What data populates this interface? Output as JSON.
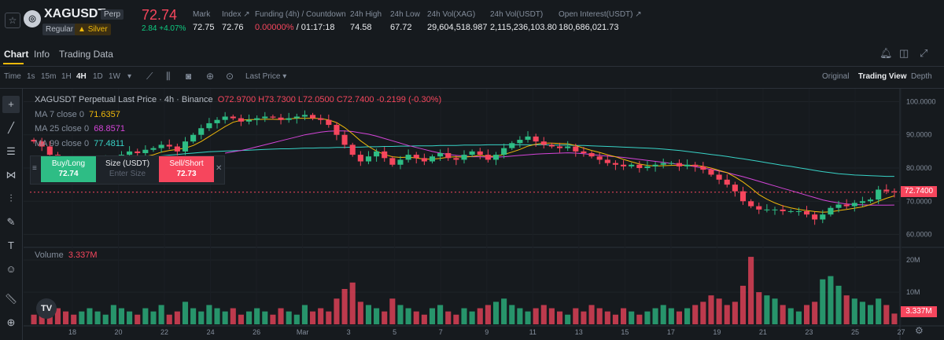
{
  "header": {
    "symbol": "XAGUSDT",
    "perp_badge": "Perp",
    "regular_badge": "Regular",
    "silver_badge": "Silver",
    "last_price": "72.74",
    "change": "2.84 +4.07%",
    "stats": [
      {
        "label": "Mark",
        "value": "72.75"
      },
      {
        "label": "Index",
        "value": "72.76"
      },
      {
        "label": "Funding (4h) / Countdown",
        "value": "0.00000%",
        "value2": " / 01:17:18"
      },
      {
        "label": "24h High",
        "value": "74.58"
      },
      {
        "label": "24h Low",
        "value": "67.72"
      },
      {
        "label": "24h Vol(XAG)",
        "value": "29,604,518.987"
      },
      {
        "label": "24h Vol(USDT)",
        "value": "2,115,236,103.80"
      },
      {
        "label": "Open Interest(USDT)",
        "value": "180,686,021.73"
      }
    ]
  },
  "tabs": [
    "Chart",
    "Info",
    "Trading Data"
  ],
  "toolbar": {
    "time_label": "Time",
    "intervals": [
      "1s",
      "15m",
      "1H",
      "4H",
      "1D",
      "1W"
    ],
    "active_interval": "4H",
    "price_type": "Last Price",
    "views": [
      "Original",
      "Trading View",
      "Depth"
    ],
    "active_view": "Trading View"
  },
  "legend": {
    "title": "XAGUSDT Perpetual Last Price · 4h · Binance",
    "ohlc": "O72.9700 H73.7300 L72.0500 C72.7400 -0.2199 (-0.30%)",
    "ma7": {
      "label": "MA 7 close 0",
      "value": "71.6357"
    },
    "ma25": {
      "label": "MA 25 close 0",
      "value": "68.8571"
    },
    "ma99": {
      "label": "MA 99 close 0",
      "value": "77.4811"
    },
    "volume_label": "Volume",
    "volume_value": "3.337M"
  },
  "order_widget": {
    "buy_label": "Buy/Long",
    "buy_price": "72.74",
    "size_label": "Size (USDT)",
    "size_placeholder": "Enter Size",
    "sell_label": "Sell/Short",
    "sell_price": "72.73"
  },
  "price_axis": [
    "100.0000",
    "90.0000",
    "80.0000",
    "70.0000",
    "60.0000"
  ],
  "volume_axis": [
    "20M",
    "10M"
  ],
  "current_price_tag": "72.7400",
  "current_volume_tag": "3.337M",
  "time_axis": [
    "18",
    "20",
    "22",
    "24",
    "26",
    "Mar",
    "3",
    "5",
    "7",
    "9",
    "11",
    "13",
    "15",
    "17",
    "19",
    "21",
    "23",
    "25",
    "27"
  ],
  "colors": {
    "up": "#2ebd85",
    "down": "#f6465d",
    "ma7": "#f0b90b",
    "ma25": "#d445d8",
    "ma99": "#38d3c7",
    "accent": "#f0b90b"
  },
  "chart_data": {
    "type": "candlestick",
    "interval": "4h",
    "price_ylim": [
      58,
      102
    ],
    "close_path": [
      88.0,
      86.5,
      84.0,
      81.5,
      80.0,
      79.5,
      80.5,
      81.0,
      82.0,
      82.5,
      83.0,
      84.0,
      85.0,
      84.5,
      85.5,
      86.0,
      87.0,
      86.5,
      85.0,
      88.0,
      90.0,
      92.0,
      93.5,
      94.5,
      95.5,
      95.0,
      94.0,
      94.5,
      95.0,
      95.5,
      95.2,
      94.5,
      95.0,
      95.5,
      96.0,
      95.0,
      94.5,
      93.0,
      90.0,
      87.0,
      84.0,
      82.0,
      83.5,
      85.0,
      83.0,
      81.0,
      82.5,
      84.0,
      83.0,
      82.0,
      83.5,
      84.5,
      83.0,
      82.5,
      84.0,
      85.0,
      84.0,
      82.5,
      84.0,
      86.0,
      87.5,
      88.5,
      89.5,
      88.0,
      87.0,
      86.5,
      86.0,
      86.5,
      85.0,
      84.5,
      83.5,
      82.5,
      81.5,
      81.0,
      80.5,
      81.0,
      80.0,
      80.5,
      81.0,
      81.5,
      81.5,
      80.5,
      81.0,
      80.5,
      79.5,
      78.0,
      76.5,
      75.0,
      73.0,
      70.0,
      68.5,
      67.5,
      67.5,
      67.5,
      67.0,
      67.0,
      67.0,
      66.0,
      64.5,
      66.0,
      68.0,
      69.0,
      68.5,
      69.5,
      70.0,
      70.5,
      73.5,
      73.0,
      72.74
    ],
    "ma7": [
      null,
      null,
      null,
      null,
      null,
      null,
      82.5,
      82.0,
      81.5,
      81.0,
      80.8,
      81.2,
      82.0,
      82.8,
      83.5,
      84.0,
      84.8,
      85.3,
      85.6,
      86.0,
      86.8,
      88.0,
      89.5,
      91.0,
      92.5,
      93.8,
      94.4,
      94.6,
      94.6,
      94.7,
      94.7,
      94.6,
      94.8,
      95.0,
      95.0,
      95.0,
      94.9,
      94.5,
      93.7,
      92.2,
      90.3,
      88.2,
      86.5,
      85.1,
      84.1,
      83.4,
      83.2,
      83.3,
      83.0,
      82.7,
      82.7,
      82.9,
      83.3,
      83.4,
      83.3,
      83.5,
      83.8,
      83.5,
      83.6,
      84.1,
      84.8,
      85.6,
      86.6,
      87.2,
      87.5,
      87.5,
      87.4,
      87.3,
      86.8,
      86.0,
      85.3,
      84.7,
      84.0,
      83.4,
      82.6,
      81.9,
      81.2,
      80.8,
      80.6,
      80.7,
      80.8,
      80.8,
      80.8,
      80.8,
      80.5,
      80.0,
      79.3,
      78.6,
      77.3,
      75.8,
      74.0,
      72.0,
      70.6,
      69.5,
      68.6,
      68.0,
      67.5,
      67.2,
      66.9,
      66.7,
      66.8,
      67.2,
      67.5,
      67.9,
      68.3,
      69.0,
      70.0,
      70.9,
      71.6357
    ],
    "ma25": [
      null,
      null,
      null,
      null,
      null,
      null,
      null,
      null,
      null,
      null,
      null,
      null,
      null,
      null,
      null,
      null,
      null,
      null,
      null,
      null,
      null,
      null,
      null,
      null,
      84.5,
      84.9,
      85.3,
      85.8,
      86.4,
      87.0,
      87.6,
      88.2,
      88.8,
      89.4,
      90.0,
      90.4,
      90.8,
      91.1,
      91.2,
      91.2,
      91.0,
      90.6,
      90.2,
      89.6,
      88.9,
      88.2,
      87.5,
      86.8,
      86.2,
      85.6,
      85.0,
      84.5,
      84.1,
      83.8,
      83.6,
      83.4,
      83.4,
      83.3,
      83.3,
      83.4,
      83.6,
      83.8,
      84.0,
      84.2,
      84.3,
      84.4,
      84.5,
      84.6,
      84.5,
      84.3,
      84.1,
      83.8,
      83.6,
      83.4,
      83.2,
      82.9,
      82.6,
      82.3,
      82.0,
      81.7,
      81.4,
      81.1,
      80.8,
      80.4,
      80.0,
      79.6,
      79.1,
      78.6,
      78.0,
      77.4,
      76.7,
      76.0,
      75.3,
      74.6,
      73.9,
      73.2,
      72.5,
      71.8,
      71.1,
      70.4,
      69.9,
      69.5,
      69.2,
      69.0,
      68.9,
      68.8,
      68.8,
      68.8,
      68.8571
    ],
    "ma99": [
      79.5,
      79.7,
      79.9,
      80.1,
      80.3,
      80.6,
      80.9,
      81.2,
      81.5,
      81.8,
      82.1,
      82.4,
      82.7,
      83.0,
      83.3,
      83.5,
      83.7,
      83.9,
      84.1,
      84.3,
      84.5,
      84.7,
      84.9,
      85.0,
      85.1,
      85.2,
      85.3,
      85.4,
      85.5,
      85.6,
      85.7,
      85.8,
      85.8,
      85.9,
      86.0,
      86.0,
      86.1,
      86.1,
      86.2,
      86.2,
      86.3,
      86.3,
      86.4,
      86.4,
      86.5,
      86.5,
      86.6,
      86.6,
      86.7,
      86.7,
      86.7,
      86.8,
      86.8,
      86.8,
      86.9,
      86.9,
      86.9,
      87.0,
      87.0,
      87.0,
      87.0,
      87.0,
      87.0,
      87.0,
      87.0,
      86.9,
      86.9,
      86.9,
      86.8,
      86.8,
      86.7,
      86.6,
      86.5,
      86.4,
      86.3,
      86.2,
      86.1,
      86.0,
      85.9,
      85.7,
      85.5,
      85.3,
      85.0,
      84.7,
      84.4,
      84.1,
      83.8,
      83.5,
      83.1,
      82.8,
      82.4,
      82.0,
      81.6,
      81.2,
      80.8,
      80.5,
      80.1,
      79.7,
      79.3,
      78.9,
      78.6,
      78.3,
      78.1,
      77.9,
      77.8,
      77.7,
      77.6,
      77.5,
      77.4811
    ],
    "volume_ylim": [
      0,
      22
    ],
    "volume_M": [
      3,
      4,
      3,
      5,
      4,
      3,
      4,
      5,
      4,
      3,
      6,
      5,
      4,
      3,
      5,
      4,
      6,
      3,
      4,
      7,
      5,
      4,
      6,
      5,
      4,
      5,
      3,
      4,
      5,
      4,
      3,
      5,
      4,
      3,
      6,
      4,
      5,
      4,
      8,
      11,
      13,
      7,
      6,
      5,
      4,
      8,
      6,
      5,
      4,
      3,
      5,
      6,
      4,
      3,
      5,
      4,
      5,
      6,
      7,
      8,
      6,
      5,
      4,
      5,
      6,
      5,
      4,
      3,
      5,
      4,
      6,
      5,
      4,
      3,
      5,
      4,
      3,
      4,
      5,
      6,
      5,
      4,
      5,
      6,
      7,
      9,
      8,
      6,
      7,
      12,
      21,
      10,
      9,
      8,
      6,
      5,
      4,
      6,
      7,
      14,
      15,
      12,
      9,
      8,
      7,
      6,
      8,
      6,
      3.337
    ]
  }
}
